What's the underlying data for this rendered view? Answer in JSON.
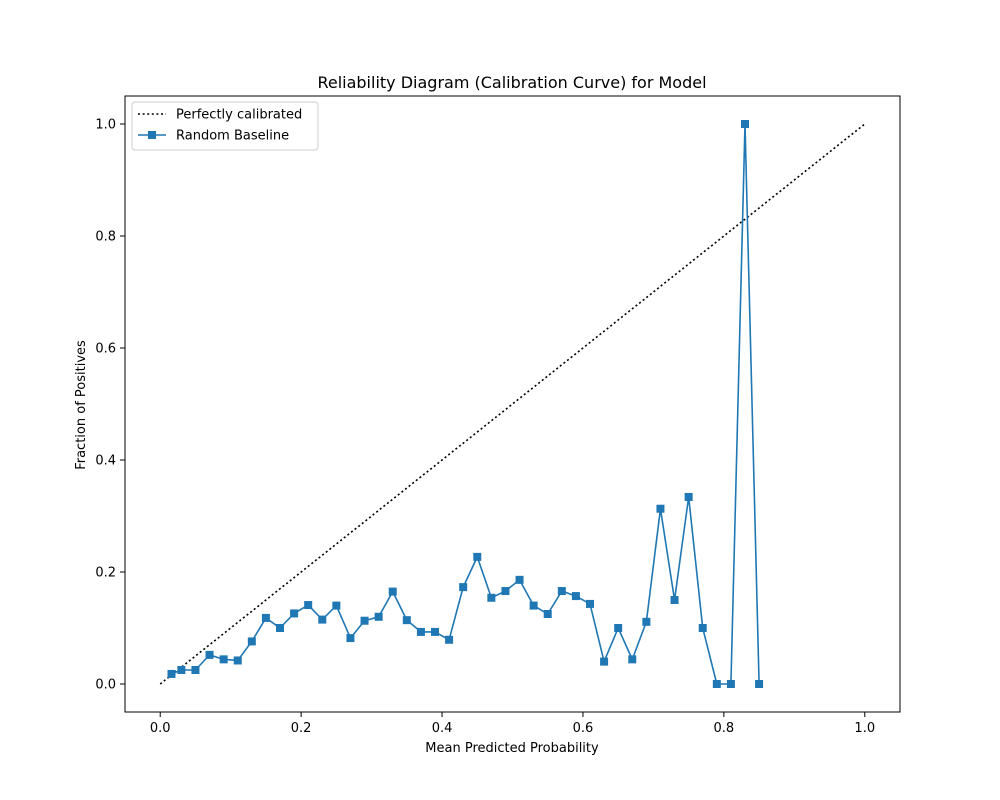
{
  "chart_data": {
    "type": "line",
    "title": "Reliability Diagram (Calibration Curve) for Model",
    "xlabel": "Mean Predicted Probability",
    "ylabel": "Fraction of Positives",
    "xlim": [
      -0.05,
      1.05
    ],
    "ylim": [
      -0.05,
      1.05
    ],
    "xticks": [
      "0.0",
      "0.2",
      "0.4",
      "0.6",
      "0.8",
      "1.0"
    ],
    "yticks": [
      "0.0",
      "0.2",
      "0.4",
      "0.6",
      "0.8",
      "1.0"
    ],
    "grid": false,
    "legend_position": "upper-left",
    "series": [
      {
        "name": "Perfectly calibrated",
        "style": "dotted",
        "color": "#000000",
        "x": [
          0.0,
          1.0
        ],
        "y": [
          0.0,
          1.0
        ]
      },
      {
        "name": "Random Baseline",
        "style": "solid",
        "marker": "square",
        "color": "#1f77b4",
        "x": [
          0.016,
          0.03,
          0.05,
          0.07,
          0.09,
          0.11,
          0.13,
          0.15,
          0.17,
          0.19,
          0.21,
          0.23,
          0.25,
          0.27,
          0.29,
          0.31,
          0.33,
          0.35,
          0.37,
          0.39,
          0.41,
          0.43,
          0.45,
          0.47,
          0.49,
          0.51,
          0.53,
          0.55,
          0.57,
          0.59,
          0.61,
          0.63,
          0.65,
          0.67,
          0.69,
          0.71,
          0.73,
          0.75,
          0.77,
          0.79,
          0.81,
          0.83,
          0.85
        ],
        "y": [
          0.018,
          0.025,
          0.025,
          0.052,
          0.044,
          0.042,
          0.076,
          0.118,
          0.1,
          0.126,
          0.141,
          0.115,
          0.14,
          0.082,
          0.113,
          0.12,
          0.165,
          0.114,
          0.093,
          0.093,
          0.079,
          0.173,
          0.227,
          0.154,
          0.166,
          0.186,
          0.14,
          0.125,
          0.166,
          0.157,
          0.143,
          0.04,
          0.1,
          0.044,
          0.111,
          0.313,
          0.15,
          0.334,
          0.1,
          0.0,
          0.0,
          1.0,
          0.0
        ]
      }
    ]
  }
}
